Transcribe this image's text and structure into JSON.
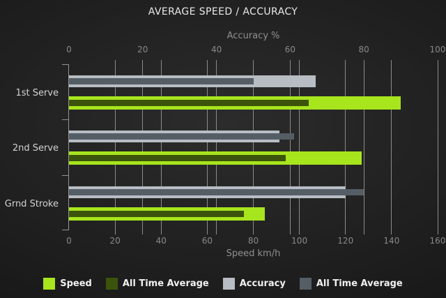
{
  "chart_data": {
    "type": "bar",
    "orientation": "horizontal",
    "title": "AVERAGE SPEED / ACCURACY",
    "categories": [
      "1st Serve",
      "2nd Serve",
      "Grnd Stroke"
    ],
    "axes": {
      "top": {
        "label": "Accuracy %",
        "min": 0,
        "max": 100,
        "ticks": [
          0,
          20,
          40,
          60,
          80,
          100
        ]
      },
      "bottom": {
        "label": "Speed km/h",
        "min": 0,
        "max": 160,
        "ticks": [
          0,
          20,
          40,
          60,
          80,
          100,
          120,
          140,
          160
        ]
      }
    },
    "series": [
      {
        "name": "Speed",
        "axis": "bottom",
        "row": "speed",
        "overlay": false,
        "color": "#a7e51d",
        "values": [
          144,
          127,
          85
        ]
      },
      {
        "name": "All Time Average",
        "axis": "bottom",
        "row": "speed",
        "overlay": true,
        "color": "#3c530c",
        "values": [
          104,
          94,
          76
        ]
      },
      {
        "name": "Accuracy",
        "axis": "top",
        "row": "accuracy",
        "overlay": false,
        "color": "#b7bdc3",
        "values": [
          67,
          57,
          75
        ]
      },
      {
        "name": "All Time Average",
        "axis": "top",
        "row": "accuracy",
        "overlay": true,
        "color": "#555d65",
        "values": [
          50,
          61,
          80
        ]
      }
    ],
    "legend_position": "bottom",
    "grid": true
  },
  "colors": {
    "background_center": "#2c2c2c",
    "background_edge": "#121212",
    "grid": "#8c8c8c",
    "title_text": "#eaeaea",
    "tick_text": "#8a8a8a",
    "axis_title_text": "#909090",
    "category_text": "#d4d4d4",
    "legend_text": "#f0f0f0"
  }
}
